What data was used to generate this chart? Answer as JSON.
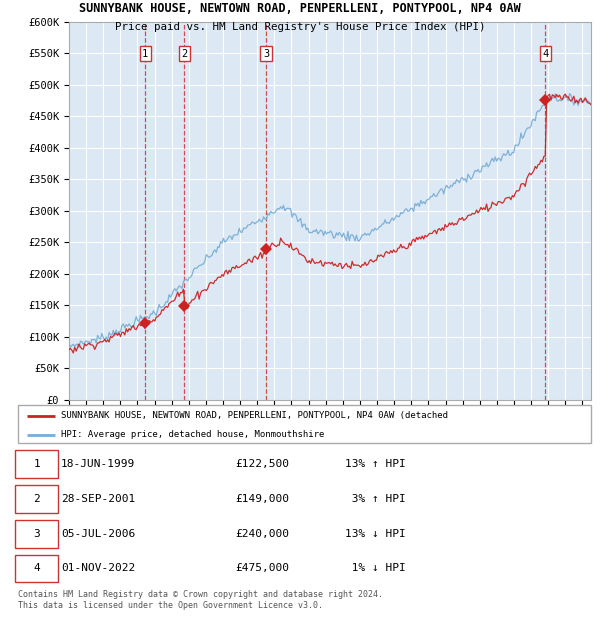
{
  "title": "SUNNYBANK HOUSE, NEWTOWN ROAD, PENPERLLENI, PONTYPOOL, NP4 0AW",
  "subtitle": "Price paid vs. HM Land Registry's House Price Index (HPI)",
  "background_color": "#dce9f5",
  "hpi_color": "#7aadd4",
  "price_color": "#cc2222",
  "vline_color": "#cc3333",
  "ylim": [
    0,
    600000
  ],
  "yticks": [
    0,
    50000,
    100000,
    150000,
    200000,
    250000,
    300000,
    350000,
    400000,
    450000,
    500000,
    550000,
    600000
  ],
  "xlim_start": 1995.0,
  "xlim_end": 2025.5,
  "transactions": [
    {
      "label": "1",
      "year_float": 1999.46,
      "price": 122500,
      "date": "18-JUN-1999",
      "pct": "13%",
      "dir": "↑"
    },
    {
      "label": "2",
      "year_float": 2001.74,
      "price": 149000,
      "date": "28-SEP-2001",
      "pct": "3%",
      "dir": "↑"
    },
    {
      "label": "3",
      "year_float": 2006.51,
      "price": 240000,
      "date": "05-JUL-2006",
      "pct": "13%",
      "dir": "↓"
    },
    {
      "label": "4",
      "year_float": 2022.84,
      "price": 475000,
      "date": "01-NOV-2022",
      "pct": "1%",
      "dir": "↓"
    }
  ],
  "legend_label_red": "SUNNYBANK HOUSE, NEWTOWN ROAD, PENPERLLENI, PONTYPOOL, NP4 0AW (detached",
  "legend_label_blue": "HPI: Average price, detached house, Monmouthshire",
  "footer": "Contains HM Land Registry data © Crown copyright and database right 2024.\nThis data is licensed under the Open Government Licence v3.0.",
  "table_rows": [
    [
      "1",
      "18-JUN-1999",
      "£122,500",
      "13% ↑ HPI"
    ],
    [
      "2",
      "28-SEP-2001",
      "£149,000",
      " 3% ↑ HPI"
    ],
    [
      "3",
      "05-JUL-2006",
      "£240,000",
      "13% ↓ HPI"
    ],
    [
      "4",
      "01-NOV-2022",
      "£475,000",
      " 1% ↓ HPI"
    ]
  ]
}
